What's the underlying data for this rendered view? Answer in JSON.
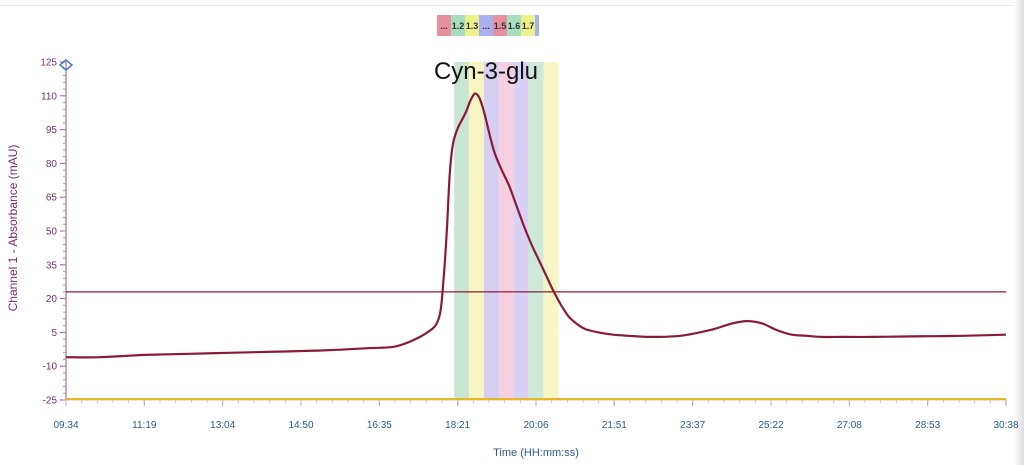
{
  "chart_data": {
    "type": "line",
    "title": "",
    "annotation": "Cyn-3-glu",
    "xlabel": "Time (HH:mm:ss)",
    "ylabel": "Channel 1 - Absorbance (mAU)",
    "x_ticks": [
      "09:34",
      "11:19",
      "13:04",
      "14:50",
      "16:35",
      "18:21",
      "20:06",
      "21:51",
      "23:37",
      "25:22",
      "27:08",
      "28:53",
      "30:38"
    ],
    "x_range_seconds": [
      574,
      1838
    ],
    "ylim": [
      -25,
      125
    ],
    "y_ticks": [
      -25,
      -10,
      5,
      20,
      35,
      50,
      65,
      80,
      95,
      110,
      125
    ],
    "threshold": 23,
    "baseline": -25,
    "legend_labels": [
      "...",
      "1.2",
      "1.3",
      "...",
      "1.5",
      "1.6",
      "1.7"
    ],
    "fraction_bands": [
      {
        "start": 1096,
        "end": 1116,
        "color": "#c9e6d3"
      },
      {
        "start": 1116,
        "end": 1136,
        "color": "#f7f6c2"
      },
      {
        "start": 1136,
        "end": 1156,
        "color": "#d5cff2"
      },
      {
        "start": 1156,
        "end": 1176,
        "color": "#f6cfe0"
      },
      {
        "start": 1176,
        "end": 1196,
        "color": "#d8d1f5"
      },
      {
        "start": 1196,
        "end": 1216,
        "color": "#cde9d8"
      },
      {
        "start": 1216,
        "end": 1236,
        "color": "#f8f6c4"
      }
    ],
    "series": [
      {
        "color": "#8b1a3a",
        "x": [
          574,
          620,
          680,
          740,
          800,
          860,
          920,
          980,
          1020,
          1060,
          1076,
          1082,
          1086,
          1090,
          1094,
          1100,
          1106,
          1112,
          1118,
          1124,
          1130,
          1136,
          1142,
          1150,
          1160,
          1170,
          1180,
          1190,
          1200,
          1210,
          1220,
          1230,
          1240,
          1250,
          1260,
          1272,
          1290,
          1310,
          1330,
          1360,
          1400,
          1440,
          1470,
          1490,
          1510,
          1530,
          1550,
          1570,
          1590,
          1620,
          1660,
          1700,
          1740,
          1780,
          1838
        ],
        "values": [
          -6,
          -6,
          -5,
          -4.5,
          -4,
          -3.5,
          -3,
          -2,
          -1,
          5,
          12,
          30,
          50,
          75,
          88,
          95,
          99,
          103,
          108,
          111,
          109,
          103,
          95,
          85,
          77,
          70,
          61,
          52,
          44,
          37,
          30,
          23,
          17,
          12,
          9,
          6.5,
          5,
          4,
          3.5,
          3,
          3.5,
          6,
          9,
          10,
          9,
          6,
          4,
          3.5,
          3,
          3,
          3,
          3.2,
          3.3,
          3.5,
          4
        ]
      }
    ]
  },
  "legend_swatches": [
    {
      "label": "...",
      "color": "#e8909f"
    },
    {
      "label": "1.2",
      "color": "#a6dfc0"
    },
    {
      "label": "1.3",
      "color": "#eef08a"
    },
    {
      "label": "...",
      "color": "#aab0f0"
    },
    {
      "label": "1.5",
      "color": "#e8909f"
    },
    {
      "label": "1.6",
      "color": "#a6dfc0"
    },
    {
      "label": "1.7",
      "color": "#eef08a"
    }
  ]
}
